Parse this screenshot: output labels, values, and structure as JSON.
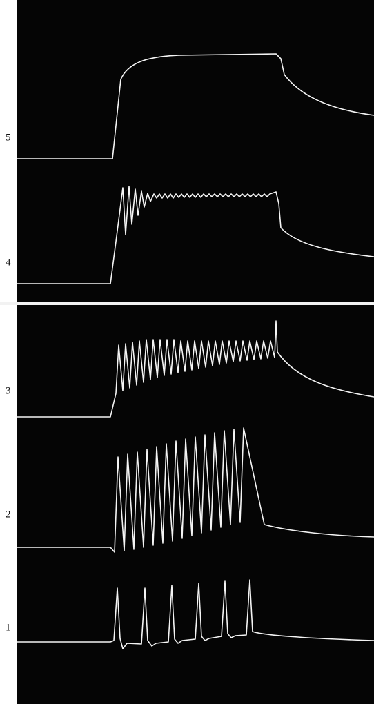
{
  "labels": [
    "5",
    "4",
    "3",
    "2",
    "1"
  ]
}
